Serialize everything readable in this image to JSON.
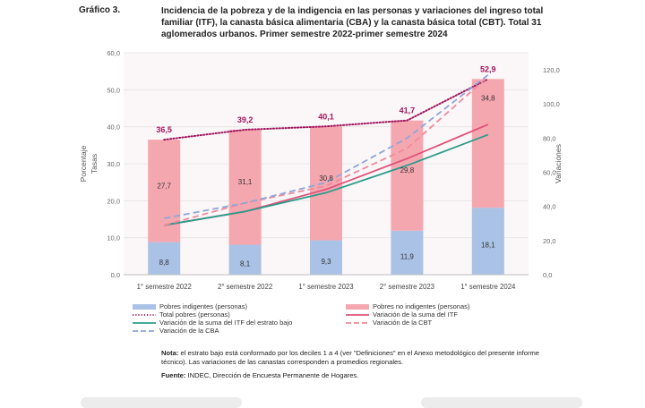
{
  "header": {
    "figure_number": "Gráfico 3.",
    "title": "Incidencia de la pobreza y de la indigencia en las personas y variaciones del ingreso total familiar (ITF), la canasta básica alimentaria (CBA) y la canasta básica total (CBT). Total 31 aglomerados urbanos. Primer semestre 2022-primer semestre 2024"
  },
  "chart_data": {
    "type": "bar",
    "stacked": true,
    "categories": [
      "1° semestre 2022",
      "2° semestre 2022",
      "1° semestre 2023",
      "2° semestre 2023",
      "1° semestre 2024"
    ],
    "y_left": {
      "label1": "Porcentaje",
      "label2": "Tasas",
      "range": [
        0,
        60
      ],
      "ticks": [
        "0,0",
        "10,0",
        "20,0",
        "30,0",
        "40,0",
        "50,0",
        "60,0"
      ]
    },
    "y_right": {
      "label": "Variaciones",
      "range": [
        0,
        130
      ],
      "ticks": [
        "0,0",
        "20,0",
        "40,0",
        "60,0",
        "80,0",
        "100,0",
        "120,0"
      ]
    },
    "bar_series": [
      {
        "name": "Pobres indigentes (personas)",
        "color": "#a9c2e6",
        "values": [
          8.8,
          8.1,
          9.3,
          11.9,
          18.1
        ],
        "labels": [
          "8,8",
          "8,1",
          "9,3",
          "11,9",
          "18,1"
        ]
      },
      {
        "name": "Pobres no indigentes (personas)",
        "color": "#f5a7b0",
        "values": [
          27.7,
          31.1,
          30.8,
          29.8,
          34.8
        ],
        "labels": [
          "27,7",
          "31,1",
          "30,8",
          "29,8",
          "34,8"
        ]
      }
    ],
    "line_series": [
      {
        "name": "Total pobres (personas)",
        "axis": "left",
        "color": "#a0165e",
        "style": "dotted",
        "values": [
          36.5,
          39.2,
          40.1,
          41.7,
          52.9
        ],
        "labels": [
          "36,5",
          "39,2",
          "40,1",
          "41,7",
          "52,9"
        ]
      },
      {
        "name": "Variación de la suma del ITF",
        "axis": "right",
        "color": "#e0547a",
        "style": "solid",
        "values": [
          29,
          37,
          50,
          68,
          88
        ]
      },
      {
        "name": "Variación de la suma del ITF del estrato bajo",
        "axis": "right",
        "color": "#2b9b8a",
        "style": "solid",
        "values": [
          29,
          37,
          48,
          64,
          82
        ]
      },
      {
        "name": "Variación de la CBT",
        "axis": "right",
        "color": "#f08a9c",
        "style": "dashed",
        "values": [
          29,
          42,
          52,
          74,
          116
        ]
      },
      {
        "name": "Variación de la CBA",
        "axis": "right",
        "color": "#8fa6d8",
        "style": "dashed",
        "values": [
          33,
          42,
          54,
          80,
          117
        ]
      }
    ]
  },
  "note": {
    "bold": "Nota:",
    "text": "el estrato bajo está conformado por los deciles 1 a 4 (ver \"Definiciones\" en el Anexo metodológico del presente informe técnico). Las variaciones de las canastas corresponden a promedios regionales."
  },
  "source": {
    "bold": "Fuente:",
    "text": "INDEC, Dirección de Encuesta Permanente de Hogares."
  }
}
